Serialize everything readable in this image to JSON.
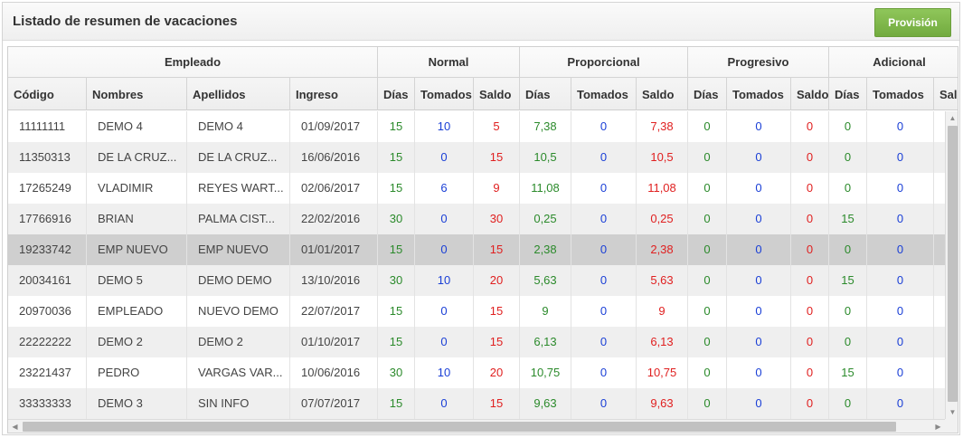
{
  "panel": {
    "title": "Listado de resumen de vacaciones",
    "provision_label": "Provisión"
  },
  "groups": [
    "Empleado",
    "Normal",
    "Proporcional",
    "Progresivo",
    "Adicional"
  ],
  "columns": [
    "Código",
    "Nombres",
    "Apellidos",
    "Ingreso",
    "Días",
    "Tomados",
    "Saldo",
    "Días",
    "Tomados",
    "Saldo",
    "Días",
    "Tomados",
    "Saldo",
    "Días",
    "Tomados",
    "Saldo"
  ],
  "colors": {
    "green": "#2b8a2b",
    "blue": "#1a3fd6",
    "red": "#e02020",
    "selected_row": "#cfcfcf",
    "button": "#7db84a"
  },
  "selected_row_index": 4,
  "rows": [
    [
      "11111111",
      "DEMO 4",
      "DEMO 4",
      "01/09/2017",
      "15",
      "10",
      "5",
      "7,38",
      "0",
      "7,38",
      "0",
      "0",
      "0",
      "0",
      "0",
      ""
    ],
    [
      "11350313",
      "DE LA CRUZ...",
      "DE LA CRUZ...",
      "16/06/2016",
      "15",
      "0",
      "15",
      "10,5",
      "0",
      "10,5",
      "0",
      "0",
      "0",
      "0",
      "0",
      ""
    ],
    [
      "17265249",
      "VLADIMIR",
      "REYES WART...",
      "02/06/2017",
      "15",
      "6",
      "9",
      "11,08",
      "0",
      "11,08",
      "0",
      "0",
      "0",
      "0",
      "0",
      ""
    ],
    [
      "17766916",
      "BRIAN",
      "PALMA CIST...",
      "22/02/2016",
      "30",
      "0",
      "30",
      "0,25",
      "0",
      "0,25",
      "0",
      "0",
      "0",
      "15",
      "0",
      ""
    ],
    [
      "19233742",
      "EMP NUEVO",
      "EMP NUEVO",
      "01/01/2017",
      "15",
      "0",
      "15",
      "2,38",
      "0",
      "2,38",
      "0",
      "0",
      "0",
      "0",
      "0",
      ""
    ],
    [
      "20034161",
      "DEMO 5",
      "DEMO DEMO",
      "13/10/2016",
      "30",
      "10",
      "20",
      "5,63",
      "0",
      "5,63",
      "0",
      "0",
      "0",
      "15",
      "0",
      ""
    ],
    [
      "20970036",
      "EMPLEADO",
      "NUEVO DEMO",
      "22/07/2017",
      "15",
      "0",
      "15",
      "9",
      "0",
      "9",
      "0",
      "0",
      "0",
      "0",
      "0",
      ""
    ],
    [
      "22222222",
      "DEMO 2",
      "DEMO 2",
      "01/10/2017",
      "15",
      "0",
      "15",
      "6,13",
      "0",
      "6,13",
      "0",
      "0",
      "0",
      "0",
      "0",
      ""
    ],
    [
      "23221437",
      "PEDRO",
      "VARGAS VAR...",
      "10/06/2016",
      "30",
      "10",
      "20",
      "10,75",
      "0",
      "10,75",
      "0",
      "0",
      "0",
      "15",
      "0",
      ""
    ],
    [
      "33333333",
      "DEMO 3",
      "SIN INFO",
      "07/07/2017",
      "15",
      "0",
      "15",
      "9,63",
      "0",
      "9,63",
      "0",
      "0",
      "0",
      "0",
      "0",
      ""
    ]
  ]
}
